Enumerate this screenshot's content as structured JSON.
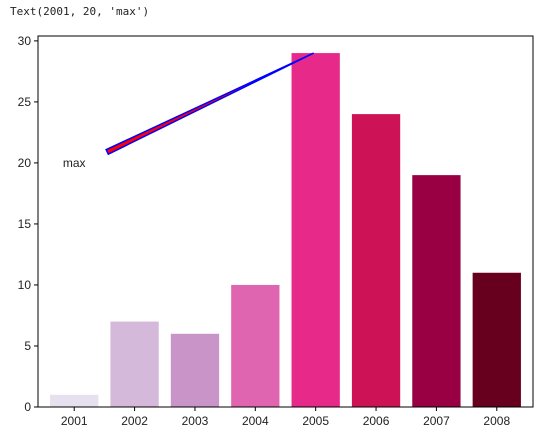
{
  "output_text": "Text(2001, 20, 'max')",
  "chart_data": {
    "type": "bar",
    "categories": [
      "2001",
      "2002",
      "2003",
      "2004",
      "2005",
      "2006",
      "2007",
      "2008"
    ],
    "values": [
      1,
      7,
      6,
      10,
      29,
      24,
      19,
      11
    ],
    "colors": [
      "#e7e1ef",
      "#d4b9da",
      "#c994c7",
      "#df65b0",
      "#e7298a",
      "#ce1256",
      "#980043",
      "#67001f"
    ],
    "title": "",
    "xlabel": "",
    "ylabel": "",
    "ylim": [
      0,
      30.4
    ],
    "yticks": [
      0,
      5,
      10,
      15,
      20,
      25,
      30
    ],
    "grid": false,
    "annotation": {
      "text": "max",
      "text_x": "2001",
      "text_y": 20,
      "arrow_to_x": "2005",
      "arrow_to_y": 29,
      "arrow_color": "#0000ff",
      "arrow_face_color": "#ff0000"
    }
  }
}
